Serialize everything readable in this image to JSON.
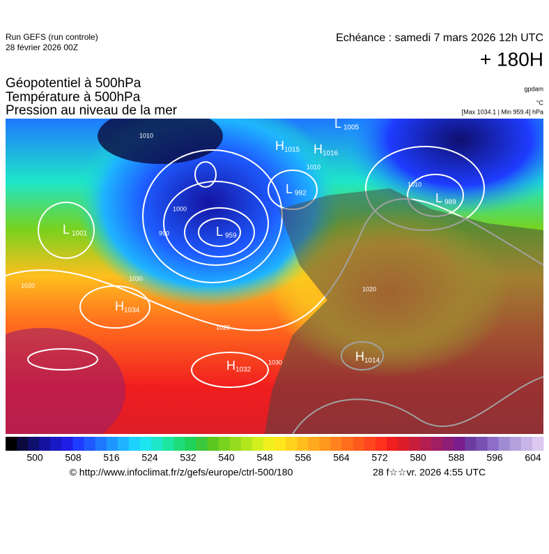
{
  "header": {
    "run": "Run GEFS (run controle)",
    "run_date": "28 février 2026 00Z",
    "echeance": "Echéance : samedi 7 mars 2026 12h UTC",
    "lead": "+ 180H"
  },
  "titles": [
    "Géopotentiel à 500hPa",
    "Température à 500hPa",
    "Pression au niveau de la mer"
  ],
  "units": {
    "geo": "gpdam",
    "temp": "°C",
    "pressure": "[Max 1034.1 | Min 959.4] hPa"
  },
  "map": {
    "centers": [
      {
        "letter": "L",
        "value": "1005"
      },
      {
        "letter": "H",
        "value": "1015"
      },
      {
        "letter": "H",
        "value": "1016"
      },
      {
        "letter": "L",
        "value": "992"
      },
      {
        "letter": "L",
        "value": "989"
      },
      {
        "letter": "L",
        "value": "1001"
      },
      {
        "letter": "L",
        "value": "959"
      },
      {
        "letter": "H",
        "value": "1034"
      },
      {
        "letter": "H",
        "value": "1032"
      },
      {
        "letter": "H",
        "value": "1014"
      }
    ],
    "contour_labels": [
      "1010",
      "1000",
      "990",
      "1020",
      "1030",
      "1010",
      "1020",
      "1010",
      "1020",
      "1030"
    ]
  },
  "colorbar": {
    "colors": [
      "#000000",
      "#0a0a3c",
      "#0f0f6e",
      "#1414a0",
      "#1919c8",
      "#1e1ee6",
      "#1e3cff",
      "#1e5aff",
      "#1e78ff",
      "#1e96ff",
      "#1eb4ff",
      "#1ed2ff",
      "#1ee6f0",
      "#1ee6c8",
      "#1ee6a0",
      "#1edc78",
      "#1ed25a",
      "#3cc83c",
      "#5ac81e",
      "#78d21e",
      "#96dc1e",
      "#b4e61e",
      "#d2f01e",
      "#f0f01e",
      "#ffe61e",
      "#ffd21e",
      "#ffbe1e",
      "#ffaa1e",
      "#ff961e",
      "#ff821e",
      "#ff6e1e",
      "#ff5a1e",
      "#ff461e",
      "#ff321e",
      "#f01e1e",
      "#dc1e28",
      "#c81e3c",
      "#b41e50",
      "#a01e64",
      "#8c1e78",
      "#781e8c",
      "#6e3ca0",
      "#7850b4",
      "#8c6ec8",
      "#a08cd2",
      "#b4a0dc",
      "#c8b4e6",
      "#dcc8f0"
    ],
    "labels": [
      "500",
      "508",
      "516",
      "524",
      "532",
      "540",
      "548",
      "556",
      "564",
      "572",
      "580",
      "588",
      "596",
      "604"
    ]
  },
  "footer": {
    "url": "© http://www.infoclimat.fr/z/gefs/europe/ctrl-500/180",
    "date": "28 f☆☆vr. 2026  4:55 UTC"
  }
}
